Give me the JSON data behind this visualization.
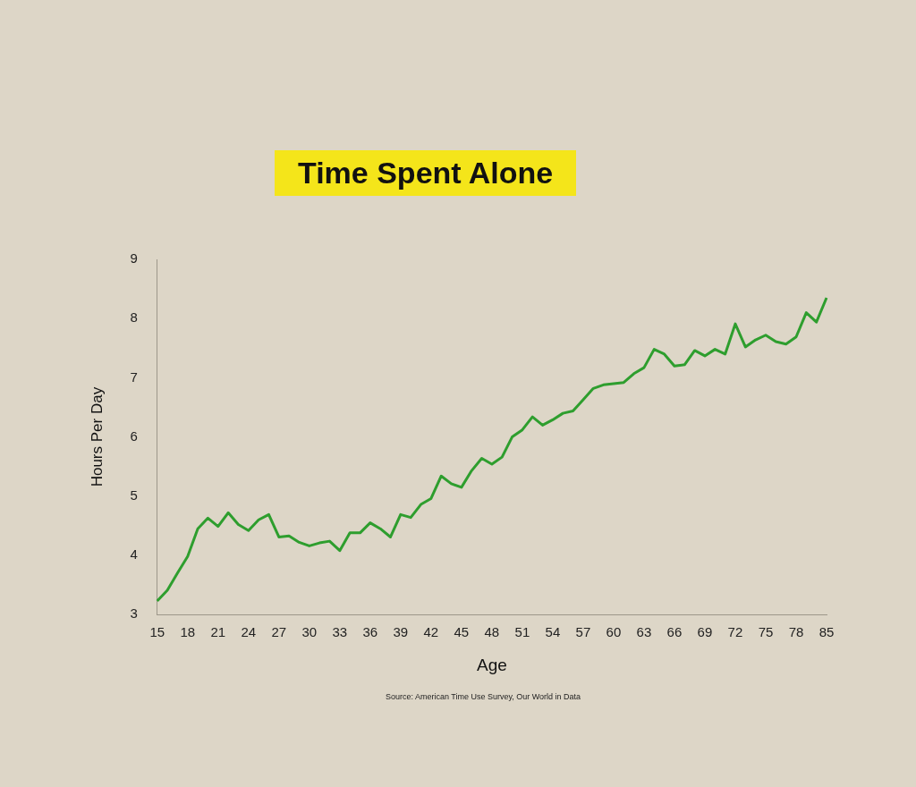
{
  "chart_data": {
    "type": "line",
    "title": "Time Spent Alone",
    "xlabel": "Age",
    "ylabel": "Hours Per Day",
    "annotations": [
      "Source: American Time Use Survey, Our World in Data"
    ],
    "categories": [
      "15",
      null,
      null,
      "18",
      null,
      null,
      "21",
      null,
      null,
      "24",
      null,
      null,
      "27",
      null,
      null,
      "30",
      null,
      null,
      "33",
      null,
      null,
      "36",
      null,
      null,
      "39",
      null,
      null,
      "42",
      null,
      null,
      "45",
      null,
      null,
      "48",
      null,
      null,
      "51",
      null,
      null,
      "54",
      null,
      null,
      "57",
      null,
      null,
      "60",
      null,
      null,
      "63",
      null,
      null,
      "66",
      null,
      null,
      "69",
      null,
      null,
      "72",
      null,
      null,
      "75",
      null,
      null,
      "78",
      null,
      null,
      "85"
    ],
    "series": [
      {
        "color": "#2e9e2e",
        "values": [
          3.23,
          3.41,
          3.7,
          3.98,
          4.45,
          4.63,
          4.49,
          4.72,
          4.52,
          4.42,
          4.6,
          4.69,
          4.31,
          4.33,
          4.22,
          4.16,
          4.21,
          4.24,
          4.08,
          4.38,
          4.38,
          4.55,
          4.45,
          4.31,
          4.69,
          4.64,
          4.86,
          4.96,
          5.34,
          5.21,
          5.15,
          5.43,
          5.64,
          5.54,
          5.66,
          6.0,
          6.12,
          6.34,
          6.2,
          6.29,
          6.4,
          6.44,
          6.63,
          6.82,
          6.88,
          6.9,
          6.92,
          7.07,
          7.17,
          7.48,
          7.4,
          7.2,
          7.22,
          7.46,
          7.37,
          7.48,
          7.4,
          7.91,
          7.52,
          7.64,
          7.72,
          7.61,
          7.57,
          7.69,
          8.1,
          7.94,
          8.35
        ]
      }
    ],
    "ylim": [
      3,
      9
    ],
    "yticks": [
      3,
      4,
      5,
      6,
      7,
      8,
      9
    ],
    "grid": false,
    "legend": false,
    "marker": "none",
    "line_style": "solid"
  }
}
